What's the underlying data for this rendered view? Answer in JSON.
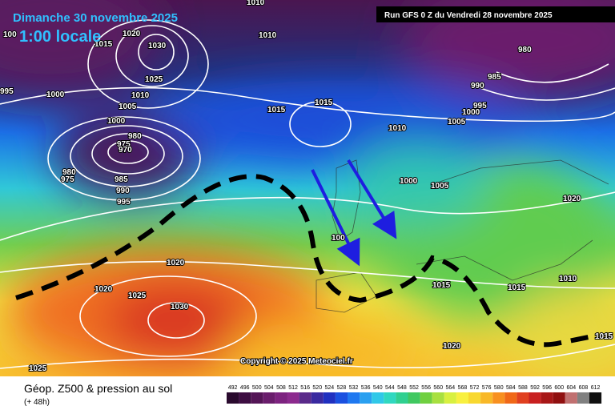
{
  "header": {
    "date": "Dimanche 30 novembre 2025",
    "time": "1:00 locale",
    "run": "Run GFS 0 Z du Vendredi 28 novembre 2025"
  },
  "copyright": "Copyright © 2025 Meteociel.fr",
  "footer": {
    "title": "Géop. Z500 & pression au sol",
    "lead": "(+ 48h)"
  },
  "isobars": [
    "100",
    "1015",
    "1020",
    "1030",
    "1010",
    "1010",
    "1025",
    "1010",
    "1005",
    "1000",
    "995",
    "1000",
    "980",
    "975",
    "970",
    "985",
    "990",
    "995",
    "980",
    "975",
    "1015",
    "1015",
    "1010",
    "1005",
    "1000",
    "995",
    "990",
    "985",
    "980",
    "1000",
    "1005",
    "1020",
    "1020",
    "1020",
    "1025",
    "1030",
    "1015",
    "1015",
    "1010",
    "1020",
    "1015",
    "1025",
    "100"
  ],
  "colorbar": {
    "labels": [
      492,
      496,
      500,
      504,
      508,
      512,
      516,
      520,
      524,
      528,
      532,
      536,
      540,
      544,
      548,
      552,
      556,
      560,
      564,
      568,
      572,
      576,
      580,
      584,
      588,
      592,
      596,
      600,
      604,
      608,
      612
    ],
    "colors": [
      "#2a0a2e",
      "#3d0d42",
      "#541556",
      "#6a1d6c",
      "#7d2380",
      "#8c2a8e",
      "#5a2a8a",
      "#3a2aa0",
      "#2030c0",
      "#1a50e0",
      "#1f78f0",
      "#2aa0f0",
      "#30c8e8",
      "#30d8c0",
      "#30d090",
      "#40c860",
      "#70d040",
      "#a8e040",
      "#d8f040",
      "#f8f040",
      "#f8d830",
      "#f8b828",
      "#f89020",
      "#f06818",
      "#e04020",
      "#c82020",
      "#a81818",
      "#901010",
      "#c07070",
      "#808080",
      "#101010"
    ]
  }
}
